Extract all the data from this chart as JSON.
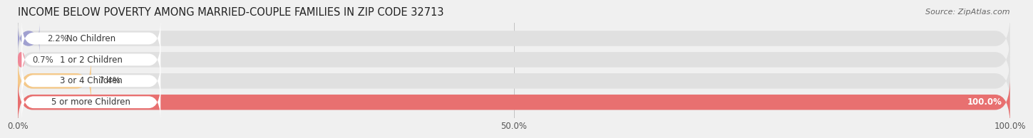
{
  "title": "INCOME BELOW POVERTY AMONG MARRIED-COUPLE FAMILIES IN ZIP CODE 32713",
  "source": "Source: ZipAtlas.com",
  "categories": [
    "No Children",
    "1 or 2 Children",
    "3 or 4 Children",
    "5 or more Children"
  ],
  "values": [
    2.2,
    0.7,
    7.4,
    100.0
  ],
  "bar_colors": [
    "#a0a0d0",
    "#f08898",
    "#f5c98a",
    "#e87070"
  ],
  "bg_color": "#f0f0f0",
  "bar_bg_color": "#e0e0e0",
  "xlim": [
    0,
    100
  ],
  "xticks": [
    0,
    50.0,
    100.0
  ],
  "xtick_labels": [
    "0.0%",
    "50.0%",
    "100.0%"
  ],
  "bar_height": 0.72,
  "title_fontsize": 10.5,
  "label_fontsize": 8.5,
  "value_fontsize": 8.5,
  "tick_fontsize": 8.5
}
